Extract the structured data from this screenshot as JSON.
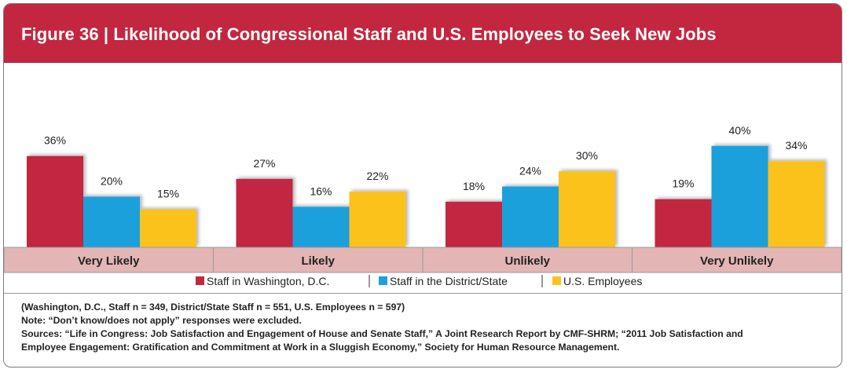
{
  "title": "Figure 36 | Likelihood of Congressional Staff and U.S. Employees to Seek New Jobs",
  "colors": {
    "title_bg": "#c2273f",
    "category_band": "#e3b5b5",
    "series": [
      "#c2273f",
      "#1ea0dc",
      "#fcc21f"
    ]
  },
  "chart_data": {
    "type": "bar",
    "categories": [
      "Very Likely",
      "Likely",
      "Unlikely",
      "Very Unlikely"
    ],
    "series": [
      {
        "name": "Staff in Washington, D.C.",
        "values": [
          36,
          27,
          18,
          19
        ],
        "labels": [
          "36%",
          "27%",
          "18%",
          "19%"
        ]
      },
      {
        "name": "Staff in the District/State",
        "values": [
          20,
          16,
          24,
          40
        ],
        "labels": [
          "20%",
          "16%",
          "24%",
          "40%"
        ]
      },
      {
        "name": "U.S. Employees",
        "values": [
          15,
          22,
          30,
          34
        ],
        "labels": [
          "15%",
          "22%",
          "30%",
          "34%"
        ]
      }
    ],
    "ylim": [
      0,
      45
    ],
    "grid": false,
    "legend_position": "bottom"
  },
  "notes": [
    "(Washington, D.C., Staff n = 349, District/State Staff n = 551, U.S. Employees n = 597)",
    "Note: “Don’t know/does not apply” responses were excluded.",
    "Sources: “Life in Congress: Job Satisfaction and Engagement of House and Senate Staff,” A Joint Research Report by CMF-SHRM; “2011 Job Satisfaction and",
    "Employee Engagement: Gratification and Commitment at Work in a Sluggish Economy,” Society for Human Resource Management."
  ]
}
